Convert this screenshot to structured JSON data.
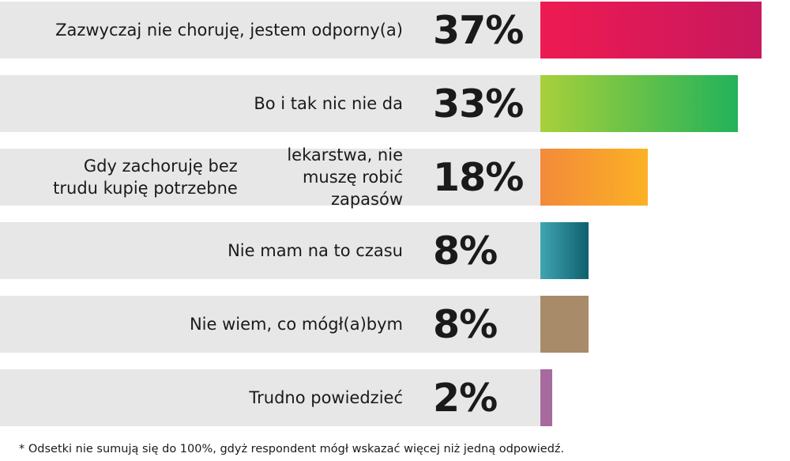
{
  "chart_data": {
    "type": "bar",
    "orientation": "horizontal",
    "categories": [
      "Zazwyczaj nie choruję, jestem odporny(a)",
      "Bo i tak nic nie da",
      "Gdy zachoruję bez trudu kupię potrzebne lekarstwa, nie muszę robić zapasów",
      "Nie mam na to czasu",
      "Nie wiem, co mógł(a)bym",
      "Trudno powiedzieć"
    ],
    "values": [
      37,
      33,
      18,
      8,
      8,
      2
    ],
    "value_labels": [
      "37%",
      "33%",
      "18%",
      "8%",
      "8%",
      "2%"
    ],
    "label_lines": [
      [
        "Zazwyczaj nie choruję, jestem odporny(a)"
      ],
      [
        "Bo i tak nic nie da"
      ],
      [
        "Gdy zachoruję bez trudu kupię potrzebne",
        "lekarstwa, nie muszę robić zapasów"
      ],
      [
        "Nie mam na to czasu"
      ],
      [
        "Nie wiem, co mógł(a)bym"
      ],
      [
        "Trudno powiedzieć"
      ]
    ],
    "bar_colors": [
      [
        "#ee1a52",
        "#c8185e"
      ],
      [
        "#a8d03a",
        "#22b25a"
      ],
      [
        "#f38a3a",
        "#fbb124"
      ],
      [
        "#3fa6b1",
        "#0f5f6e"
      ],
      [
        "#a88b69",
        "#a88b69"
      ],
      [
        "#a66a9f",
        "#a66a9f"
      ]
    ],
    "title": "",
    "xlabel": "",
    "ylabel": "",
    "grid": false,
    "footnote": "* Odsetki nie sumują się do 100%, gdyż respondent mógł wskazać więcej niż jedną odpowiedź."
  }
}
